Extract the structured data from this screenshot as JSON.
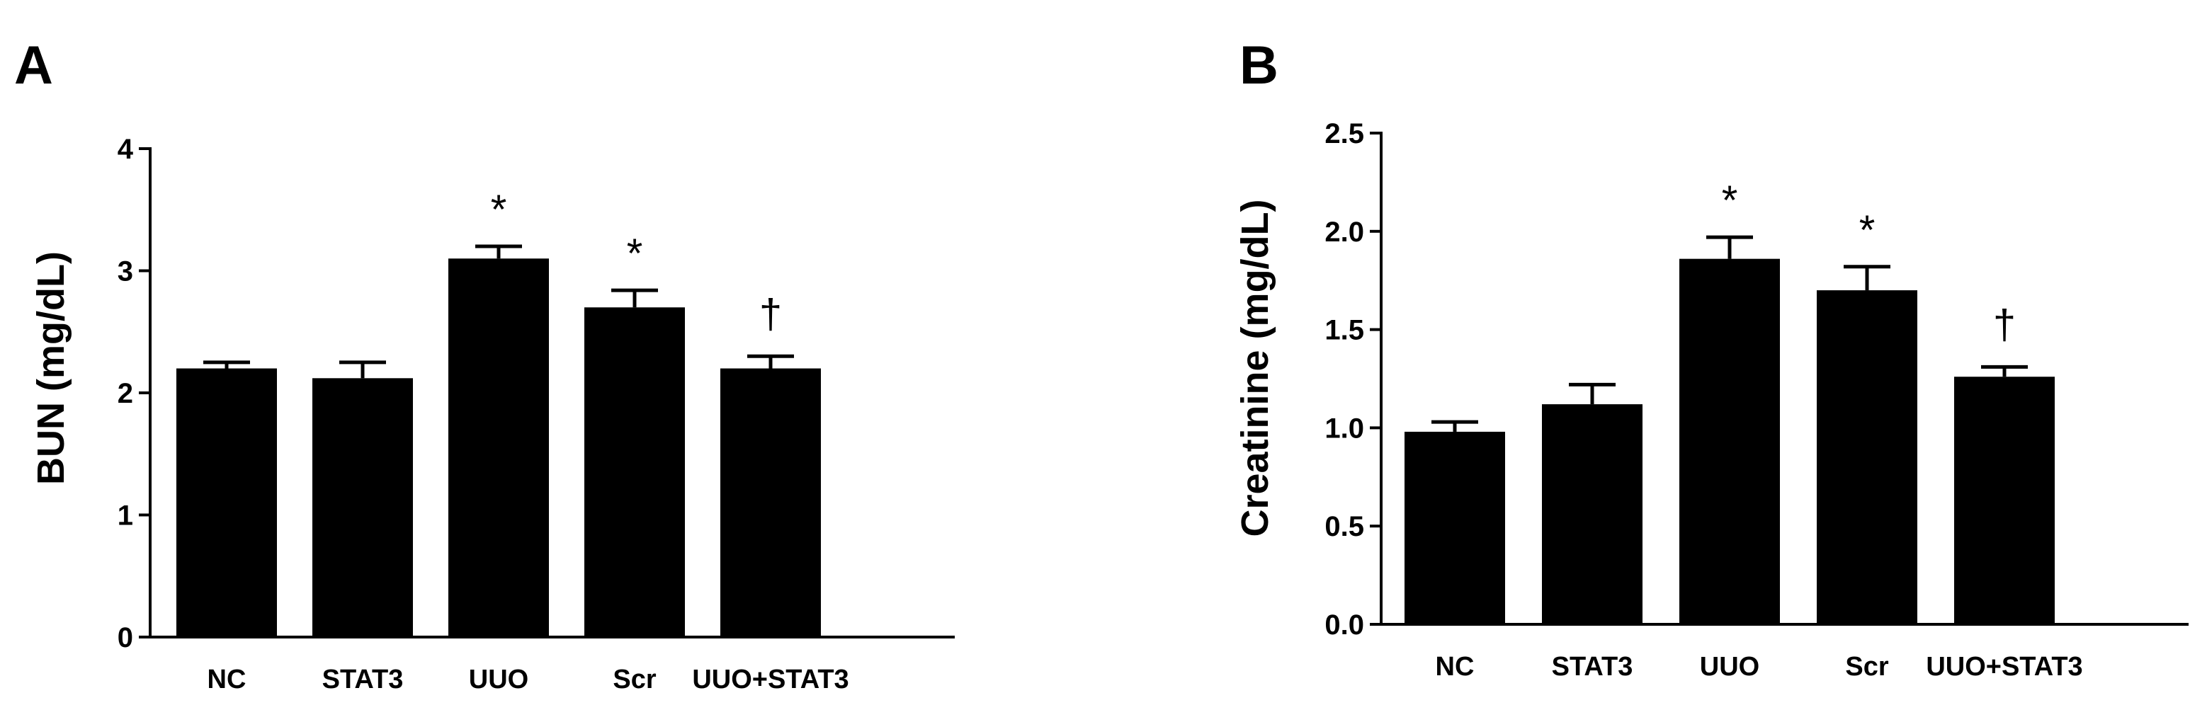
{
  "chart_data": [
    {
      "panel_label": "A",
      "type": "bar",
      "categories": [
        "NC",
        "STAT3",
        "UUO",
        "Scr",
        "UUO+STAT3"
      ],
      "values": [
        2.2,
        2.12,
        3.1,
        2.7,
        2.2
      ],
      "error": [
        0.05,
        0.13,
        0.1,
        0.14,
        0.1
      ],
      "annotations": [
        "",
        "",
        "*",
        "*",
        "†"
      ],
      "ylabel": "BUN (mg/dL)",
      "ylim": [
        0,
        4
      ],
      "yticks": [
        0,
        1,
        2,
        3,
        4
      ],
      "ytick_labels": [
        "0",
        "1",
        "2",
        "3",
        "4"
      ],
      "bar_color": "#000000",
      "grid": false
    },
    {
      "panel_label": "B",
      "type": "bar",
      "categories": [
        "NC",
        "STAT3",
        "UUO",
        "Scr",
        "UUO+STAT3"
      ],
      "values": [
        0.98,
        1.12,
        1.86,
        1.7,
        1.26
      ],
      "error": [
        0.05,
        0.1,
        0.11,
        0.12,
        0.05
      ],
      "annotations": [
        "",
        "",
        "*",
        "*",
        "†"
      ],
      "ylabel": "Creatinine (mg/dL)",
      "ylim": [
        0,
        2.5
      ],
      "yticks": [
        0,
        0.5,
        1.0,
        1.5,
        2.0,
        2.5
      ],
      "ytick_labels": [
        "0.0",
        "0.5",
        "1.0",
        "1.5",
        "2.0",
        "2.5"
      ],
      "bar_color": "#000000",
      "grid": false
    }
  ]
}
